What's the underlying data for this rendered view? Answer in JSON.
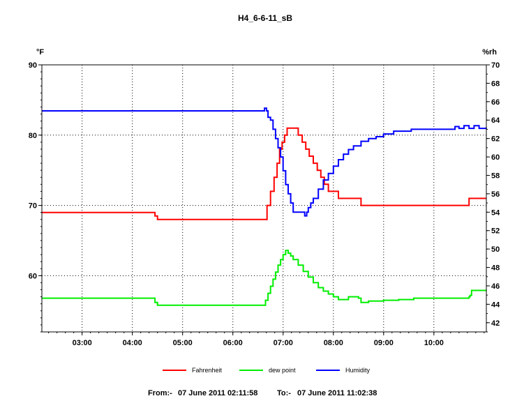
{
  "chart_data": {
    "type": "line",
    "title": "H4_6-6-11_sB",
    "left_axis_unit": "°F",
    "right_axis_unit": "%rh",
    "x_ticks": [
      "03:00",
      "04:00",
      "05:00",
      "06:00",
      "07:00",
      "08:00",
      "09:00",
      "10:00"
    ],
    "x_range_hours": [
      2.1994,
      11.0439
    ],
    "y_left": {
      "ticks": [
        60,
        70,
        80,
        90
      ],
      "range": [
        52,
        90
      ]
    },
    "y_right": {
      "ticks": [
        42,
        44,
        46,
        48,
        50,
        52,
        54,
        56,
        58,
        60,
        62,
        64,
        66,
        68,
        70
      ],
      "range": [
        41,
        70
      ]
    },
    "grid": true,
    "legend_position": "bottom",
    "series": [
      {
        "name": "Fahrenheit",
        "axis": "left",
        "color": "#ff0000",
        "step": true,
        "points": [
          [
            2.2,
            69
          ],
          [
            4.45,
            69
          ],
          [
            4.45,
            68.5
          ],
          [
            4.5,
            68.5
          ],
          [
            4.5,
            68
          ],
          [
            6.6,
            68
          ],
          [
            6.68,
            70
          ],
          [
            6.75,
            72
          ],
          [
            6.82,
            74
          ],
          [
            6.88,
            76
          ],
          [
            6.93,
            78
          ],
          [
            6.98,
            79
          ],
          [
            7.03,
            80
          ],
          [
            7.08,
            81
          ],
          [
            7.25,
            81
          ],
          [
            7.3,
            80
          ],
          [
            7.38,
            79
          ],
          [
            7.45,
            78
          ],
          [
            7.52,
            77
          ],
          [
            7.6,
            76
          ],
          [
            7.68,
            75
          ],
          [
            7.75,
            74
          ],
          [
            7.82,
            73
          ],
          [
            7.9,
            72
          ],
          [
            8.1,
            71
          ],
          [
            8.55,
            71
          ],
          [
            8.55,
            70
          ],
          [
            10.7,
            70
          ],
          [
            10.7,
            71
          ],
          [
            11.04,
            71
          ]
        ]
      },
      {
        "name": "dew point",
        "axis": "left",
        "color": "#00ee00",
        "step": true,
        "points": [
          [
            2.2,
            56.8
          ],
          [
            4.45,
            56.8
          ],
          [
            4.45,
            56.2
          ],
          [
            4.5,
            56.2
          ],
          [
            4.5,
            55.8
          ],
          [
            6.6,
            55.8
          ],
          [
            6.65,
            56.5
          ],
          [
            6.7,
            57.5
          ],
          [
            6.75,
            58.5
          ],
          [
            6.8,
            59.5
          ],
          [
            6.85,
            60.5
          ],
          [
            6.9,
            61.5
          ],
          [
            6.95,
            62.3
          ],
          [
            7.0,
            63
          ],
          [
            7.05,
            63.6
          ],
          [
            7.1,
            63.2
          ],
          [
            7.15,
            62.8
          ],
          [
            7.2,
            62.3
          ],
          [
            7.3,
            61.5
          ],
          [
            7.4,
            60.6
          ],
          [
            7.5,
            59.8
          ],
          [
            7.6,
            59
          ],
          [
            7.7,
            58.3
          ],
          [
            7.8,
            57.8
          ],
          [
            7.9,
            57.4
          ],
          [
            8.0,
            57.0
          ],
          [
            8.1,
            56.6
          ],
          [
            8.3,
            57
          ],
          [
            8.5,
            56.8
          ],
          [
            8.55,
            56.2
          ],
          [
            8.7,
            56.4
          ],
          [
            9.0,
            56.5
          ],
          [
            9.3,
            56.6
          ],
          [
            9.6,
            56.8
          ],
          [
            10.4,
            56.8
          ],
          [
            10.7,
            57
          ],
          [
            10.72,
            57.2
          ],
          [
            10.75,
            57.9
          ],
          [
            11.04,
            58.0
          ]
        ]
      },
      {
        "name": "Humidity",
        "axis": "right",
        "color": "#0000ff",
        "step": true,
        "points": [
          [
            2.2,
            65
          ],
          [
            6.6,
            65
          ],
          [
            6.63,
            65.3
          ],
          [
            6.67,
            65
          ],
          [
            6.7,
            64.3
          ],
          [
            6.75,
            64
          ],
          [
            6.8,
            63
          ],
          [
            6.85,
            62
          ],
          [
            6.9,
            61
          ],
          [
            6.95,
            60
          ],
          [
            7.0,
            58.5
          ],
          [
            7.05,
            57
          ],
          [
            7.1,
            56
          ],
          [
            7.15,
            55
          ],
          [
            7.2,
            54
          ],
          [
            7.4,
            54
          ],
          [
            7.43,
            53.6
          ],
          [
            7.47,
            54
          ],
          [
            7.5,
            54.5
          ],
          [
            7.55,
            55
          ],
          [
            7.6,
            55.5
          ],
          [
            7.7,
            56.5
          ],
          [
            7.8,
            57.5
          ],
          [
            7.9,
            58.2
          ],
          [
            8.0,
            59
          ],
          [
            8.1,
            59.7
          ],
          [
            8.2,
            60.3
          ],
          [
            8.3,
            60.8
          ],
          [
            8.4,
            61.2
          ],
          [
            8.55,
            61.7
          ],
          [
            8.7,
            62
          ],
          [
            8.85,
            62.2
          ],
          [
            9.0,
            62.5
          ],
          [
            9.2,
            62.8
          ],
          [
            9.55,
            63
          ],
          [
            10.4,
            63
          ],
          [
            10.42,
            63.3
          ],
          [
            10.5,
            63.1
          ],
          [
            10.6,
            63.4
          ],
          [
            10.7,
            63.1
          ],
          [
            10.8,
            63.4
          ],
          [
            10.9,
            63.1
          ],
          [
            11.04,
            63.2
          ]
        ]
      }
    ],
    "footer": {
      "from_label": "From:-",
      "from_value": "07 June 2011 02:11:58",
      "to_label": "To:-",
      "to_value": "07 June 2011 11:02:38"
    }
  }
}
